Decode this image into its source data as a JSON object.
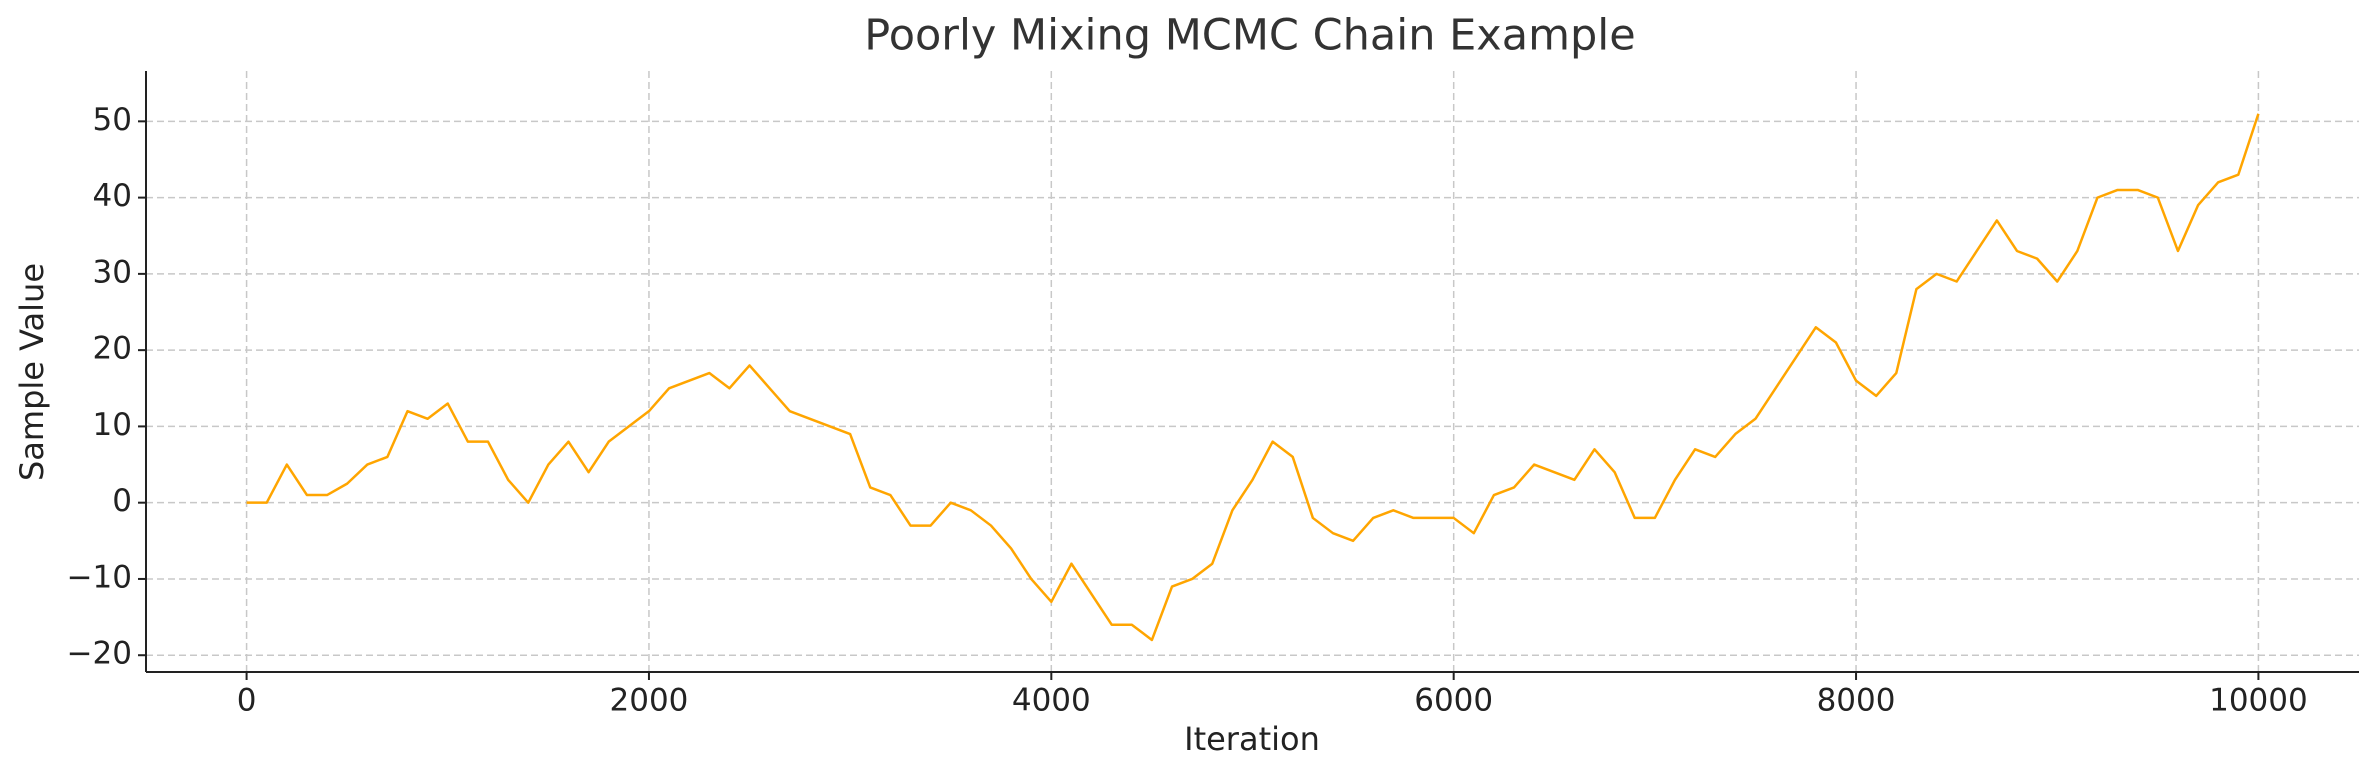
{
  "chart_data": {
    "type": "line",
    "title": "Poorly Mixing MCMC Chain Example",
    "x_label": "Iteration",
    "y_label": "Sample Value",
    "x": [
      0,
      100,
      200,
      300,
      400,
      500,
      600,
      700,
      800,
      900,
      1000,
      1100,
      1200,
      1300,
      1400,
      1500,
      1600,
      1700,
      1800,
      1900,
      2000,
      2100,
      2200,
      2300,
      2400,
      2500,
      2600,
      2700,
      2800,
      2900,
      3000,
      3100,
      3200,
      3300,
      3400,
      3500,
      3600,
      3700,
      3800,
      3900,
      4000,
      4100,
      4200,
      4300,
      4400,
      4500,
      4600,
      4700,
      4800,
      4900,
      5000,
      5100,
      5200,
      5300,
      5400,
      5500,
      5600,
      5700,
      5800,
      5900,
      6000,
      6100,
      6200,
      6300,
      6400,
      6500,
      6600,
      6700,
      6800,
      6900,
      7000,
      7100,
      7200,
      7300,
      7400,
      7500,
      7600,
      7700,
      7800,
      7900,
      8000,
      8100,
      8200,
      8300,
      8400,
      8500,
      8600,
      8700,
      8800,
      8900,
      9000,
      9100,
      9200,
      9300,
      9400,
      9500,
      9600,
      9700,
      9800,
      9900,
      10000
    ],
    "series": [
      {
        "name": "Sample Value",
        "color": "#ffa500",
        "values": [
          0,
          0,
          5,
          1,
          1,
          2.5,
          5,
          6,
          12,
          11,
          13,
          8,
          8,
          3,
          0,
          5,
          8,
          4,
          8,
          10,
          12,
          15,
          16,
          17,
          15,
          18,
          15,
          12,
          11,
          10,
          9,
          2,
          1,
          -3,
          -3,
          0,
          -1,
          -3,
          -6,
          -10,
          -13,
          -8,
          -12,
          -16,
          -16,
          -18,
          -11,
          -10,
          -8,
          -1,
          3,
          8,
          6,
          -2,
          -4,
          -5,
          -2,
          -1,
          -2,
          -2,
          -2,
          -4,
          1,
          2,
          5,
          4,
          3,
          7,
          4,
          -2,
          -2,
          3,
          7,
          6,
          9,
          11,
          15,
          19,
          23,
          21,
          16,
          14,
          17,
          28,
          30,
          29,
          33,
          37,
          33,
          32,
          29,
          33,
          40,
          41,
          41,
          40,
          33,
          39,
          42,
          43,
          51
        ]
      }
    ],
    "xlim": [
      -500,
      10500
    ],
    "ylim": [
      -22.2,
      56.6
    ],
    "xticks": [
      0,
      2000,
      4000,
      6000,
      8000,
      10000
    ],
    "yticks": [
      {
        "value": -20,
        "label": "−20"
      },
      {
        "value": -10,
        "label": "−10"
      },
      0,
      10,
      20,
      30,
      40,
      50
    ],
    "grid": true
  }
}
